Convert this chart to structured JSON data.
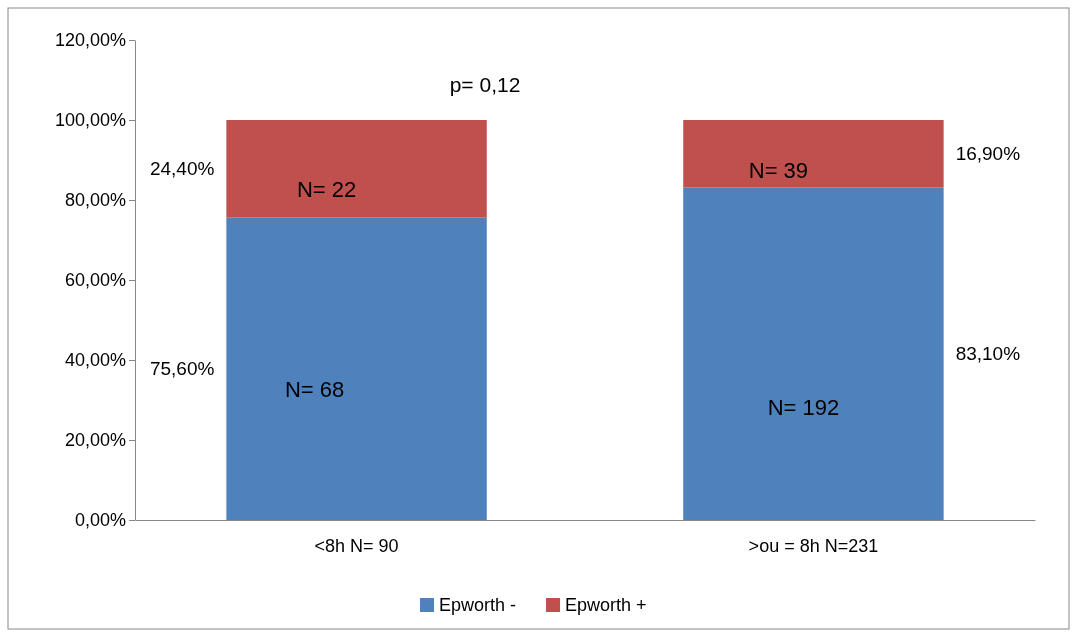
{
  "chart_data": {
    "type": "bar",
    "stacked": true,
    "categories": [
      "<8h N= 90",
      ">ou = 8h N=231"
    ],
    "series": [
      {
        "name": "Epworth -",
        "color": "#4f81bd",
        "values": [
          75.6,
          83.1
        ]
      },
      {
        "name": "Epworth +",
        "color": "#c0504d",
        "values": [
          24.4,
          16.9
        ]
      }
    ],
    "ylim": [
      0,
      120
    ],
    "yticks": [
      {
        "value": 0,
        "label": "0,00%"
      },
      {
        "value": 20,
        "label": "20,00%"
      },
      {
        "value": 40,
        "label": "40,00%"
      },
      {
        "value": 60,
        "label": "60,00%"
      },
      {
        "value": 80,
        "label": "80,00%"
      },
      {
        "value": 100,
        "label": "100,00%"
      },
      {
        "value": 120,
        "label": "120,00%"
      }
    ],
    "annotations": [
      "p= 0,12",
      "N= 68",
      "N= 22",
      "N= 192",
      "N= 39",
      "75,60%",
      "24,40%",
      "83,10%",
      "16,90%"
    ],
    "grid": false,
    "legend": "bottom"
  }
}
